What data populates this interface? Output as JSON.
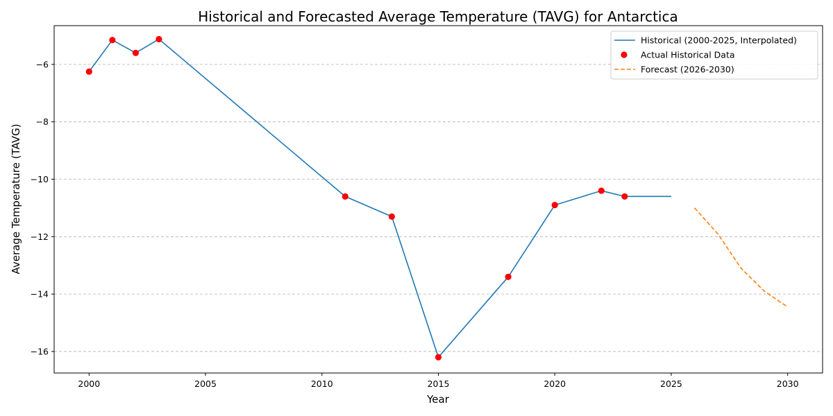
{
  "chart_data": {
    "type": "line",
    "title": "Historical and Forecasted Average Temperature (TAVG) for Antarctica",
    "xlabel": "Year",
    "ylabel": "Average Temperature (TAVG)",
    "xlim": [
      1998.5,
      2031.5
    ],
    "ylim": [
      -16.75,
      -4.65
    ],
    "xticks": [
      2000,
      2005,
      2010,
      2015,
      2020,
      2025,
      2030
    ],
    "yticks": [
      -16,
      -14,
      -12,
      -10,
      -8,
      -6
    ],
    "grid": "y-dashed",
    "legend_position": "top-right",
    "series": [
      {
        "name": "Historical (2000-2025, Interpolated)",
        "kind": "line",
        "color": "#1f77b4",
        "points": [
          [
            2000,
            -6.25
          ],
          [
            2001,
            -5.15
          ],
          [
            2002,
            -5.6
          ],
          [
            2003,
            -5.12
          ],
          [
            2011,
            -10.6
          ],
          [
            2013,
            -11.3
          ],
          [
            2015,
            -16.2
          ],
          [
            2018,
            -13.4
          ],
          [
            2020,
            -10.9
          ],
          [
            2022,
            -10.4
          ],
          [
            2023,
            -10.6
          ],
          [
            2024,
            -10.6
          ],
          [
            2025,
            -10.6
          ]
        ]
      },
      {
        "name": "Actual Historical Data",
        "kind": "scatter",
        "color": "#ff0000",
        "points": [
          [
            2000,
            -6.25
          ],
          [
            2001,
            -5.15
          ],
          [
            2002,
            -5.6
          ],
          [
            2003,
            -5.12
          ],
          [
            2011,
            -10.6
          ],
          [
            2013,
            -11.3
          ],
          [
            2015,
            -16.2
          ],
          [
            2018,
            -13.4
          ],
          [
            2020,
            -10.9
          ],
          [
            2022,
            -10.4
          ],
          [
            2023,
            -10.6
          ]
        ]
      },
      {
        "name": "Forecast (2026-2030)",
        "kind": "dashed-line",
        "color": "#ff7f0e",
        "points": [
          [
            2026,
            -11.0
          ],
          [
            2027,
            -11.9
          ],
          [
            2028,
            -13.1
          ],
          [
            2029,
            -13.9
          ],
          [
            2030,
            -14.45
          ]
        ]
      }
    ]
  }
}
